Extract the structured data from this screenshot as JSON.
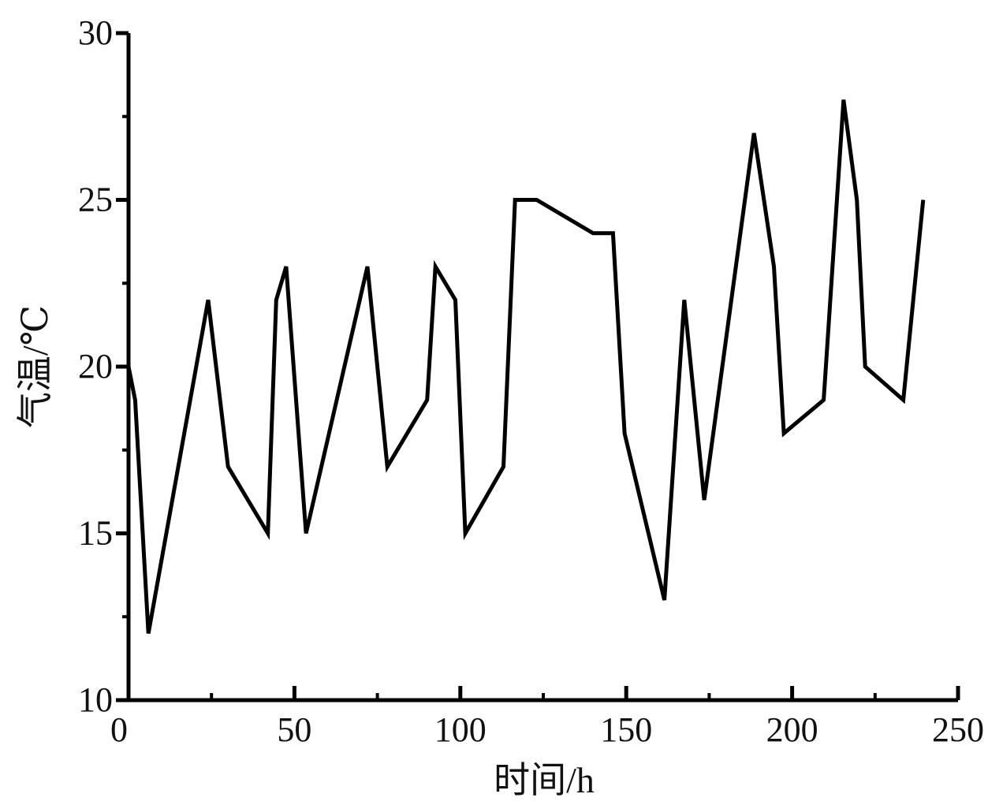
{
  "chart_data": {
    "type": "line",
    "title": "",
    "xlabel": "时间/h",
    "ylabel": "气温/℃",
    "xlim": [
      0,
      250
    ],
    "ylim": [
      10,
      30
    ],
    "xticks": [
      0,
      50,
      100,
      150,
      200,
      250
    ],
    "yticks": [
      10,
      15,
      20,
      25,
      30
    ],
    "xtick_labels": [
      "0",
      "50",
      "100",
      "150",
      "200",
      "250"
    ],
    "ytick_labels": [
      "10",
      "15",
      "20",
      "25",
      "30"
    ],
    "grid": false,
    "series": [
      {
        "name": "气温",
        "color": "#000000",
        "x": [
          0,
          2,
          6,
          24,
          30,
          42,
          44.5,
          47.5,
          53.5,
          72,
          74,
          78,
          90,
          92.5,
          98.5,
          101.5,
          113,
          116.5,
          123,
          140,
          146,
          149.5,
          161.5,
          167.5,
          173.5,
          188.5,
          194.5,
          197.5,
          209.5,
          215.5,
          219.5,
          222,
          233.5,
          239.5
        ],
        "y": [
          20,
          19,
          12,
          22,
          17,
          15,
          22,
          23,
          15,
          23,
          21,
          17,
          19,
          23,
          22,
          15,
          17,
          25,
          25,
          24,
          24,
          18,
          13,
          22,
          16,
          27,
          23,
          18,
          19,
          28,
          25,
          20,
          19,
          25
        ]
      }
    ]
  }
}
